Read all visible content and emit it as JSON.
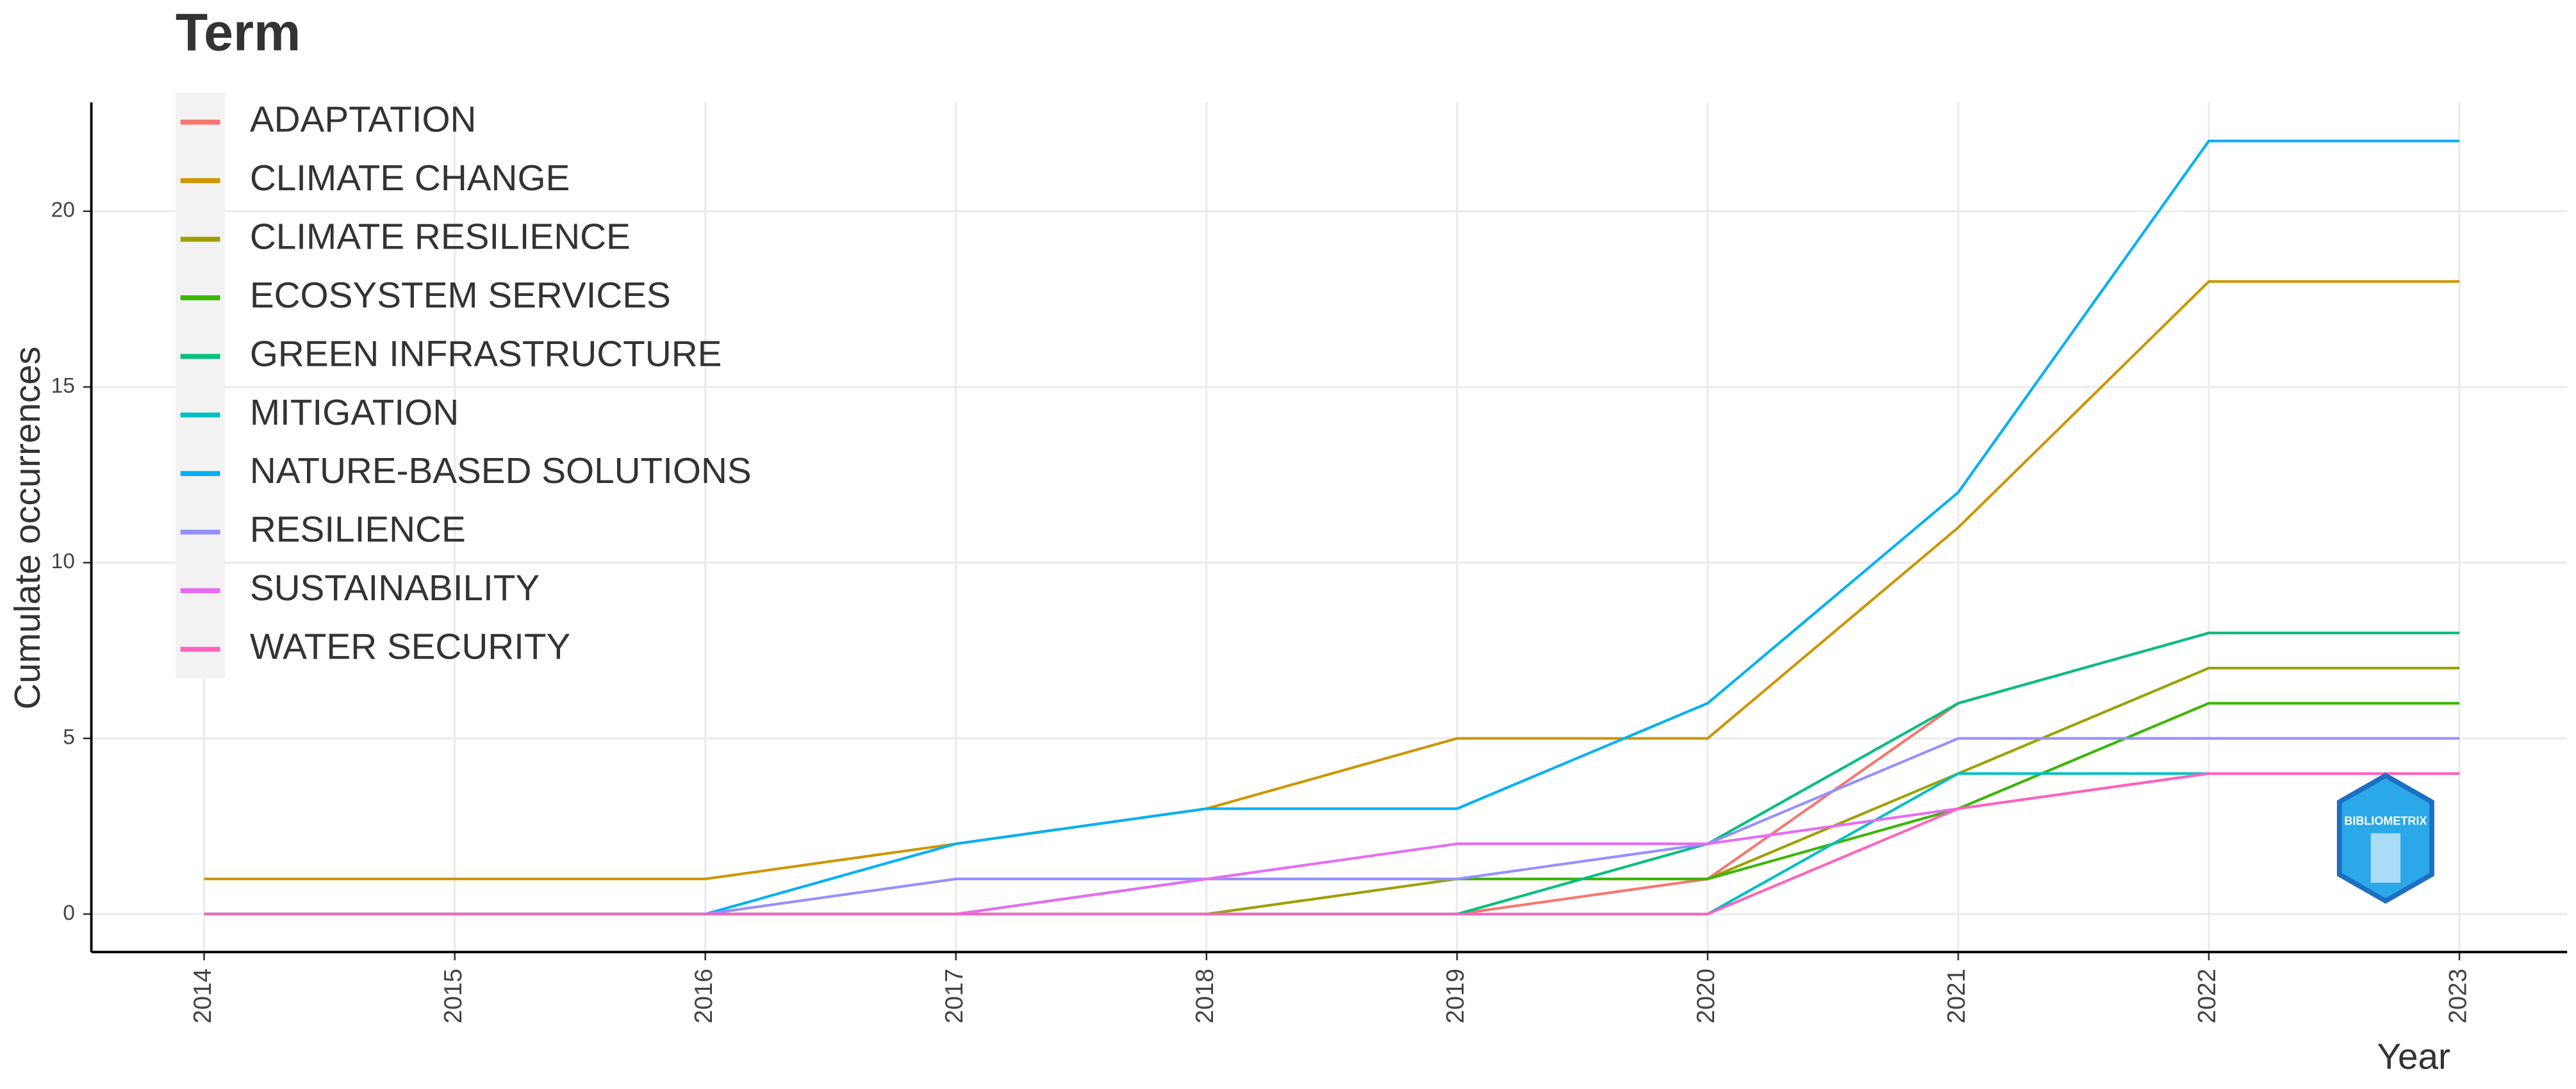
{
  "chart_data": {
    "type": "line",
    "legend_title": "Term",
    "x_label": "Year",
    "y_label": "Cumulate occurrences",
    "x": [
      2014,
      2015,
      2016,
      2017,
      2018,
      2019,
      2020,
      2021,
      2022,
      2023
    ],
    "xlim": [
      2013.55,
      2023.43
    ],
    "xticks": [
      2014,
      2015,
      2016,
      2017,
      2018,
      2019,
      2020,
      2021,
      2022,
      2023
    ],
    "ylim": [
      -1.08,
      23.1
    ],
    "yticks": [
      0,
      5,
      10,
      15,
      20
    ],
    "grid": true,
    "legend_position": "top-left",
    "series": [
      {
        "name": "ADAPTATION",
        "color": "#F8766D",
        "values": [
          0,
          0,
          0,
          0,
          0,
          0,
          1,
          6,
          8,
          8
        ]
      },
      {
        "name": "CLIMATE CHANGE",
        "color": "#CD9600",
        "values": [
          1,
          1,
          1,
          2,
          3,
          5,
          5,
          11,
          18,
          18
        ]
      },
      {
        "name": "CLIMATE RESILIENCE",
        "color": "#9EA000",
        "values": [
          0,
          0,
          0,
          0,
          0,
          1,
          1,
          4,
          7,
          7
        ]
      },
      {
        "name": "ECOSYSTEM SERVICES",
        "color": "#39B600",
        "values": [
          0,
          0,
          0,
          0,
          1,
          1,
          1,
          3,
          6,
          6
        ]
      },
      {
        "name": "GREEN INFRASTRUCTURE",
        "color": "#00BF7D",
        "values": [
          0,
          0,
          0,
          0,
          0,
          0,
          2,
          6,
          8,
          8
        ]
      },
      {
        "name": "MITIGATION",
        "color": "#00BFC4",
        "values": [
          0,
          0,
          0,
          0,
          0,
          0,
          0,
          4,
          4,
          4
        ]
      },
      {
        "name": "NATURE-BASED SOLUTIONS",
        "color": "#00B0F6",
        "values": [
          0,
          0,
          0,
          2,
          3,
          3,
          6,
          12,
          22,
          22
        ]
      },
      {
        "name": "RESILIENCE",
        "color": "#9590FF",
        "values": [
          0,
          0,
          0,
          1,
          1,
          1,
          2,
          5,
          5,
          5
        ]
      },
      {
        "name": "SUSTAINABILITY",
        "color": "#E76BF3",
        "values": [
          0,
          0,
          0,
          0,
          1,
          2,
          2,
          3,
          4,
          4
        ]
      },
      {
        "name": "WATER SECURITY",
        "color": "#FF62BC",
        "values": [
          0,
          0,
          0,
          0,
          0,
          0,
          0,
          3,
          4,
          4
        ]
      }
    ]
  },
  "logo_text": "BIBLIOMETRIX"
}
